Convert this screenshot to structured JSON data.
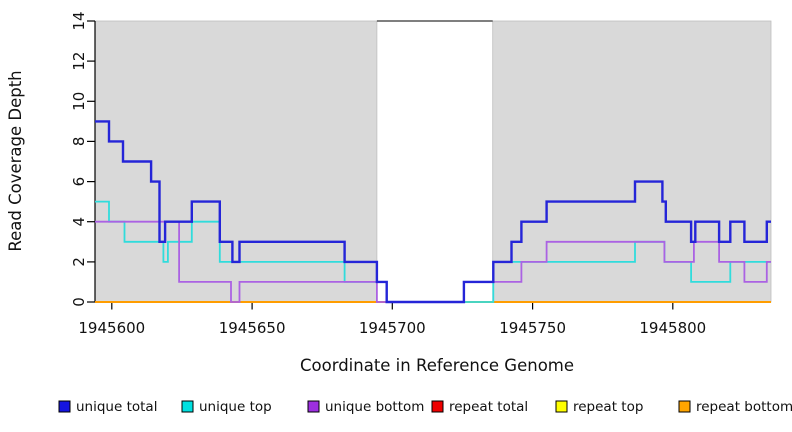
{
  "figure": {
    "xlabel": "Coordinate in Reference Genome",
    "ylabel": "Read Coverage Depth"
  },
  "chart_data": {
    "type": "line",
    "subtype": "step",
    "title": "",
    "xlabel": "Coordinate in Reference Genome",
    "ylabel": "Read Coverage Depth",
    "xlim": [
      1945594,
      1945835
    ],
    "ylim": [
      0,
      14
    ],
    "x_ticks": [
      1945600,
      1945650,
      1945700,
      1945750,
      1945800
    ],
    "y_ticks": [
      0,
      2,
      4,
      6,
      8,
      10,
      12,
      14
    ],
    "grid": false,
    "legend_position": "bottom",
    "shaded_regions": [
      {
        "from": 1945594,
        "to": 1945694.5,
        "color": "#d9d9d9"
      },
      {
        "from": 1945735.8,
        "to": 1945835,
        "color": "#d9d9d9"
      }
    ],
    "gap_region": {
      "from": 1945694.5,
      "to": 1945735.8
    },
    "series": [
      {
        "name": "unique total",
        "color": "#2525d8",
        "width": 2.4,
        "steps": [
          [
            1945594,
            9
          ],
          [
            1945599,
            8
          ],
          [
            1945604,
            7
          ],
          [
            1945614,
            6
          ],
          [
            1945617,
            3
          ],
          [
            1945619,
            4
          ],
          [
            1945628.5,
            5
          ],
          [
            1945638.5,
            3
          ],
          [
            1945643,
            2
          ],
          [
            1945645.5,
            3
          ],
          [
            1945683,
            2
          ],
          [
            1945694.5,
            1
          ],
          [
            1945698,
            0
          ],
          [
            1945725.5,
            1
          ],
          [
            1945736,
            2
          ],
          [
            1945742.5,
            3
          ],
          [
            1945746,
            4
          ],
          [
            1945755,
            5
          ],
          [
            1945786.5,
            6
          ],
          [
            1945796.3,
            5
          ],
          [
            1945797.5,
            4
          ],
          [
            1945806.5,
            3
          ],
          [
            1945808,
            4
          ],
          [
            1945816.5,
            3
          ],
          [
            1945820.5,
            4
          ],
          [
            1945825.5,
            3
          ],
          [
            1945833.5,
            4
          ]
        ]
      },
      {
        "name": "unique top",
        "color": "#30dcdc",
        "width": 1.8,
        "steps": [
          [
            1945594,
            5
          ],
          [
            1945599,
            4
          ],
          [
            1945604.5,
            3
          ],
          [
            1945618.4,
            2
          ],
          [
            1945620,
            3
          ],
          [
            1945628.5,
            4
          ],
          [
            1945638.5,
            2
          ],
          [
            1945683,
            1
          ],
          [
            1945698,
            0
          ],
          [
            1945736,
            2
          ],
          [
            1945786.5,
            3
          ],
          [
            1945797,
            2
          ],
          [
            1945806.5,
            1
          ],
          [
            1945820.5,
            2
          ]
        ]
      },
      {
        "name": "unique bottom",
        "color": "#ab62e3",
        "width": 1.8,
        "steps": [
          [
            1945594,
            4
          ],
          [
            1945624,
            1
          ],
          [
            1945642.5,
            0
          ],
          [
            1945645.5,
            1
          ],
          [
            1945694.5,
            0
          ],
          [
            1945725.5,
            1
          ],
          [
            1945746,
            2
          ],
          [
            1945755,
            3
          ],
          [
            1945797,
            2
          ],
          [
            1945807.5,
            3
          ],
          [
            1945816.5,
            2
          ],
          [
            1945825.5,
            1
          ],
          [
            1945833.5,
            2
          ]
        ]
      },
      {
        "name": "repeat total",
        "color": "#ee1111",
        "width": 1.5,
        "steps": [
          [
            1945594,
            0
          ]
        ]
      },
      {
        "name": "repeat top",
        "color": "#ffff00",
        "width": 1.5,
        "steps": [
          [
            1945594,
            0
          ]
        ]
      },
      {
        "name": "repeat bottom",
        "color": "#ff9d00",
        "width": 2,
        "steps": [
          [
            1945594,
            0
          ]
        ]
      }
    ],
    "draw_order": [
      3,
      4,
      5,
      1,
      2,
      0
    ],
    "legend": [
      {
        "label": "unique total",
        "color": "#1414e0"
      },
      {
        "label": "unique top",
        "color": "#00e0e0"
      },
      {
        "label": "unique bottom",
        "color": "#9d2fe0"
      },
      {
        "label": "repeat total",
        "color": "#ee0000"
      },
      {
        "label": "repeat top",
        "color": "#ffff00"
      },
      {
        "label": "repeat bottom",
        "color": "#ffa500"
      }
    ]
  }
}
